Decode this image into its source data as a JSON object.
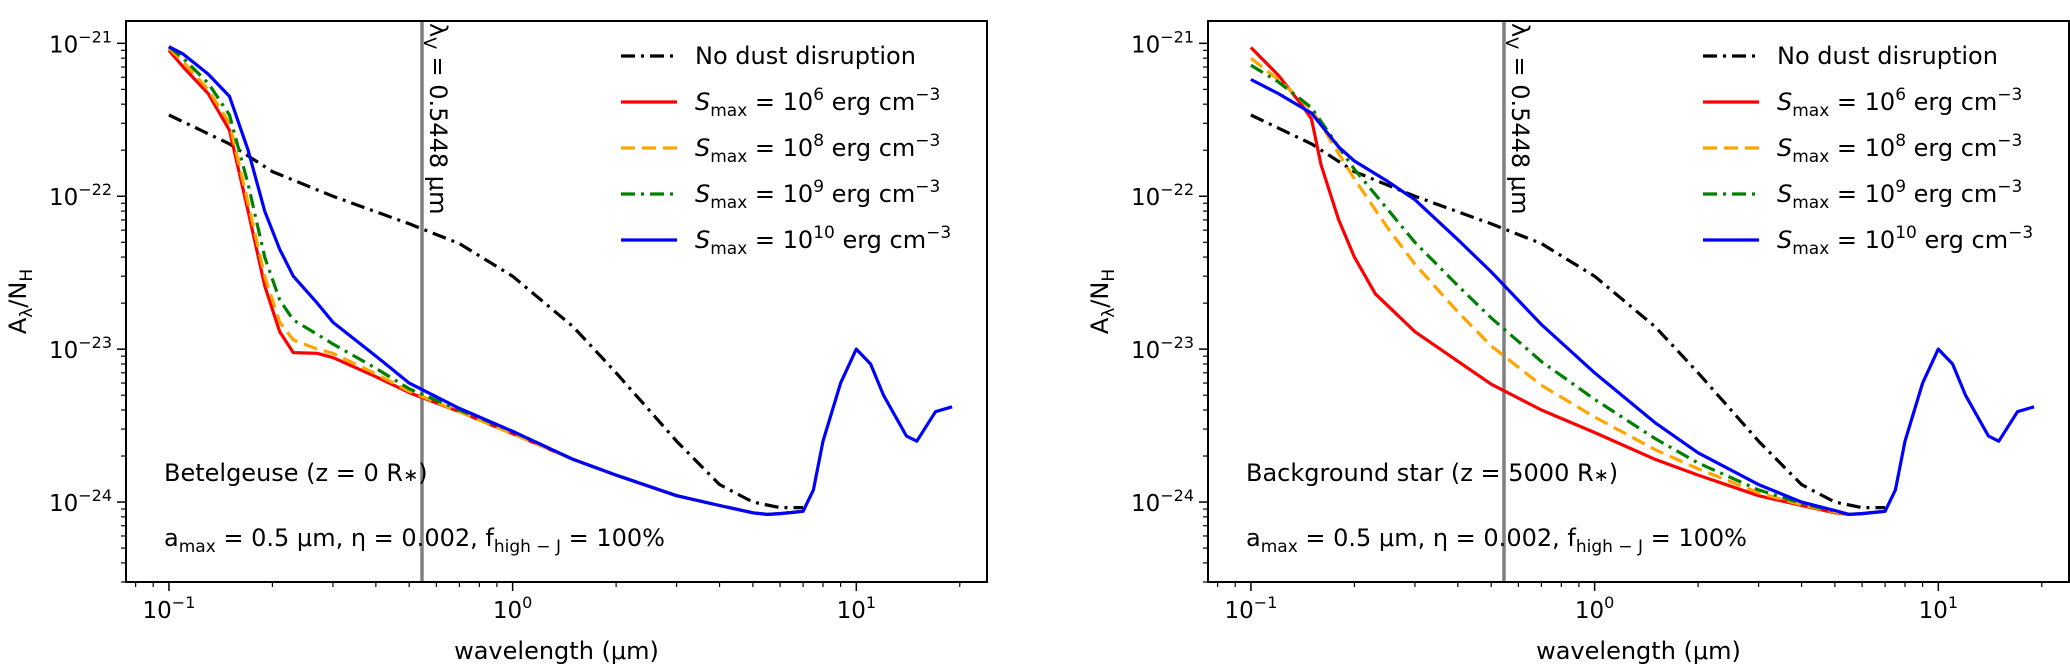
{
  "chart_data": [
    {
      "type": "line",
      "xscale": "log",
      "yscale": "log",
      "xlim": [
        0.075,
        24
      ],
      "ylim": [
        3e-25,
        1.4e-21
      ],
      "xlabel": "wavelength (μm)",
      "ylabel": "Aλ/NH",
      "xticks": [
        0.1,
        1,
        10
      ],
      "xtick_labels": [
        {
          "base": "10",
          "exp": "−1"
        },
        {
          "base": "10",
          "exp": "0"
        },
        {
          "base": "10",
          "exp": "1"
        }
      ],
      "yticks": [
        1e-24,
        1e-23,
        1e-22,
        1e-21
      ],
      "ytick_labels": [
        {
          "base": "10",
          "exp": "−24"
        },
        {
          "base": "10",
          "exp": "−23"
        },
        {
          "base": "10",
          "exp": "−22"
        },
        {
          "base": "10",
          "exp": "−21"
        }
      ],
      "vline": {
        "x": 0.5448,
        "label": "λV = 0.5448 μm",
        "color": "#808080"
      },
      "annotations": [
        "Betelgeuse (z = 0 R*)",
        "amax = 0.5 μm, η = 0.002, fhigh−J = 100%"
      ],
      "legend_location": "top-right",
      "series": [
        {
          "name": "No dust disruption",
          "color": "#000000",
          "style": "dashdot",
          "x": [
            0.1,
            0.15,
            0.2,
            0.3,
            0.5,
            0.7,
            1.0,
            1.5,
            2.0,
            3.0,
            4.0,
            5.0,
            6.0,
            7.0
          ],
          "y": [
            3.4e-22,
            2.2e-22,
            1.45e-22,
            1e-22,
            6.6e-23,
            4.9e-23,
            3e-23,
            1.4e-23,
            7e-24,
            2.5e-24,
            1.3e-24,
            1e-24,
            9.2e-25,
            9.2e-25
          ]
        },
        {
          "name": "Smax = 10^6 erg cm^-3",
          "color": "#ff0000",
          "style": "solid",
          "x": [
            0.1,
            0.11,
            0.13,
            0.15,
            0.17,
            0.19,
            0.21,
            0.23,
            0.27,
            0.3,
            0.4,
            0.5,
            0.7,
            1.0,
            1.5,
            2.0,
            3.0,
            4.0,
            5.0,
            5.5,
            6.0,
            7.0
          ],
          "y": [
            9e-22,
            7e-22,
            4.7e-22,
            2.7e-22,
            8e-23,
            2.6e-23,
            1.3e-23,
            9.5e-24,
            9.4e-24,
            8.8e-24,
            6.6e-24,
            5.2e-24,
            3.9e-24,
            2.8e-24,
            1.9e-24,
            1.5e-24,
            1.1e-24,
            9.5e-25,
            8.5e-25,
            8.3e-25,
            8.4e-25,
            8.7e-25
          ]
        },
        {
          "name": "Smax = 10^8 erg cm^-3",
          "color": "#ffa500",
          "style": "dashed",
          "x": [
            0.1,
            0.11,
            0.13,
            0.15,
            0.17,
            0.19,
            0.21,
            0.23,
            0.27,
            0.3,
            0.4,
            0.5,
            0.7,
            1.0,
            1.5,
            2.0,
            3.0,
            4.0,
            5.0,
            5.5,
            6.0,
            7.0
          ],
          "y": [
            9.3e-22,
            7.6e-22,
            5e-22,
            3e-22,
            9e-23,
            3e-23,
            1.5e-23,
            1.15e-23,
            1e-23,
            9.4e-24,
            6.9e-24,
            5.3e-24,
            3.9e-24,
            2.8e-24,
            1.9e-24,
            1.5e-24,
            1.1e-24,
            9.5e-25,
            8.5e-25,
            8.3e-25,
            8.4e-25,
            8.7e-25
          ]
        },
        {
          "name": "Smax = 10^9 erg cm^-3",
          "color": "#008000",
          "style": "dashdot",
          "x": [
            0.1,
            0.11,
            0.13,
            0.15,
            0.17,
            0.19,
            0.21,
            0.23,
            0.27,
            0.3,
            0.4,
            0.5,
            0.7,
            1.0,
            1.5,
            2.0,
            3.0,
            4.0,
            5.0,
            5.5,
            6.0,
            7.0
          ],
          "y": [
            9.5e-22,
            8e-22,
            5.5e-22,
            3.4e-22,
            1.2e-22,
            4e-23,
            2.1e-23,
            1.55e-23,
            1.25e-23,
            1.08e-23,
            7.5e-24,
            5.5e-24,
            4e-24,
            2.9e-24,
            1.9e-24,
            1.5e-24,
            1.1e-24,
            9.5e-25,
            8.5e-25,
            8.3e-25,
            8.4e-25,
            8.7e-25
          ]
        },
        {
          "name": "Smax = 10^10 erg cm^-3",
          "color": "#0000ff",
          "style": "solid",
          "x": [
            0.1,
            0.11,
            0.13,
            0.15,
            0.17,
            0.19,
            0.21,
            0.23,
            0.27,
            0.3,
            0.4,
            0.5,
            0.7,
            1.0,
            1.5,
            2.0,
            3.0,
            4.0,
            5.0,
            5.5,
            6.0,
            7.0,
            7.5,
            8.0,
            9.0,
            10.0,
            11.0,
            12.0,
            14.0,
            15.0,
            17.0,
            19.0
          ],
          "y": [
            9.5e-22,
            8.5e-22,
            6.3e-22,
            4.5e-22,
            2e-22,
            8e-23,
            4.5e-23,
            3e-23,
            2e-23,
            1.5e-23,
            9e-24,
            6e-24,
            4.1e-24,
            2.9e-24,
            1.9e-24,
            1.5e-24,
            1.1e-24,
            9.5e-25,
            8.5e-25,
            8.3e-25,
            8.4e-25,
            8.7e-25,
            1.2e-24,
            2.5e-24,
            6e-24,
            1e-23,
            8e-24,
            5e-24,
            2.7e-24,
            2.5e-24,
            3.9e-24,
            4.2e-24
          ]
        }
      ]
    },
    {
      "type": "line",
      "xscale": "log",
      "yscale": "log",
      "xlim": [
        0.075,
        24
      ],
      "ylim": [
        3e-25,
        1.4e-21
      ],
      "xlabel": "wavelength (μm)",
      "ylabel": "Aλ/NH",
      "xticks": [
        0.1,
        1,
        10
      ],
      "xtick_labels": [
        {
          "base": "10",
          "exp": "−1"
        },
        {
          "base": "10",
          "exp": "0"
        },
        {
          "base": "10",
          "exp": "1"
        }
      ],
      "yticks": [
        1e-24,
        1e-23,
        1e-22,
        1e-21
      ],
      "ytick_labels": [
        {
          "base": "10",
          "exp": "−24"
        },
        {
          "base": "10",
          "exp": "−23"
        },
        {
          "base": "10",
          "exp": "−22"
        },
        {
          "base": "10",
          "exp": "−21"
        }
      ],
      "vline": {
        "x": 0.5448,
        "label": "λV = 0.5448 μm",
        "color": "#808080"
      },
      "annotations": [
        "Background star (z = 5000 R*)",
        "amax = 0.5 μm, η = 0.002, fhigh−J = 100%"
      ],
      "legend_location": "top-right",
      "series": [
        {
          "name": "No dust disruption",
          "color": "#000000",
          "style": "dashdot",
          "x": [
            0.1,
            0.15,
            0.2,
            0.3,
            0.5,
            0.7,
            1.0,
            1.5,
            2.0,
            3.0,
            4.0,
            5.0,
            6.0,
            7.0
          ],
          "y": [
            3.4e-22,
            2.2e-22,
            1.45e-22,
            1e-22,
            6.6e-23,
            4.9e-23,
            3e-23,
            1.4e-23,
            7e-24,
            2.5e-24,
            1.3e-24,
            1e-24,
            9.2e-25,
            9.2e-25
          ]
        },
        {
          "name": "Smax = 10^6 erg cm^-3",
          "color": "#ff0000",
          "style": "solid",
          "x": [
            0.1,
            0.12,
            0.14,
            0.15,
            0.16,
            0.18,
            0.2,
            0.23,
            0.3,
            0.5,
            0.7,
            1.0,
            1.5,
            2.0,
            3.0,
            4.0,
            5.0,
            5.5,
            6.0,
            7.0
          ],
          "y": [
            9.4e-22,
            6.2e-22,
            4e-22,
            3.2e-22,
            1.6e-22,
            7e-23,
            4e-23,
            2.3e-23,
            1.3e-23,
            5.9e-24,
            4e-24,
            2.85e-24,
            1.9e-24,
            1.5e-24,
            1.1e-24,
            9.5e-25,
            8.5e-25,
            8.3e-25,
            8.4e-25,
            8.7e-25
          ]
        },
        {
          "name": "Smax = 10^8 erg cm^-3",
          "color": "#ffa500",
          "style": "dashed",
          "x": [
            0.1,
            0.12,
            0.15,
            0.18,
            0.2,
            0.25,
            0.3,
            0.4,
            0.5,
            0.7,
            1.0,
            1.5,
            2.0,
            3.0,
            4.0,
            5.0,
            5.5,
            6.0,
            7.0
          ],
          "y": [
            8e-22,
            5.8e-22,
            3.7e-22,
            1.9e-22,
            1.3e-22,
            6.2e-23,
            3.6e-23,
            1.75e-23,
            1.05e-23,
            5.8e-24,
            3.6e-24,
            2.2e-24,
            1.65e-24,
            1.15e-24,
            9.6e-25,
            8.6e-25,
            8.3e-25,
            8.4e-25,
            8.7e-25
          ]
        },
        {
          "name": "Smax = 10^9 erg cm^-3",
          "color": "#008000",
          "style": "dashdot",
          "x": [
            0.1,
            0.12,
            0.15,
            0.18,
            0.2,
            0.25,
            0.3,
            0.4,
            0.5,
            0.7,
            1.0,
            1.5,
            2.0,
            3.0,
            4.0,
            5.0,
            5.5,
            6.0,
            7.0
          ],
          "y": [
            7.2e-22,
            5.6e-22,
            3.8e-22,
            2.1e-22,
            1.5e-22,
            8.2e-23,
            5e-23,
            2.6e-23,
            1.6e-23,
            8.3e-24,
            4.7e-24,
            2.6e-24,
            1.8e-24,
            1.2e-24,
            9.8e-25,
            8.7e-25,
            8.3e-25,
            8.4e-25,
            8.7e-25
          ]
        },
        {
          "name": "Smax = 10^10 erg cm^-3",
          "color": "#0000ff",
          "style": "solid",
          "x": [
            0.1,
            0.12,
            0.15,
            0.18,
            0.2,
            0.25,
            0.3,
            0.4,
            0.5,
            0.7,
            1.0,
            1.5,
            2.0,
            3.0,
            4.0,
            5.0,
            5.5,
            6.0,
            7.0,
            7.5,
            8.0,
            9.0,
            10.0,
            11.0,
            12.0,
            14.0,
            15.0,
            17.0,
            19.0
          ],
          "y": [
            5.8e-22,
            4.7e-22,
            3.5e-22,
            2.1e-22,
            1.7e-22,
            1.25e-22,
            9.5e-23,
            5.2e-23,
            3.2e-23,
            1.45e-23,
            7e-24,
            3.3e-24,
            2.1e-24,
            1.3e-24,
            1e-24,
            8.8e-25,
            8.3e-25,
            8.4e-25,
            8.7e-25,
            1.2e-24,
            2.5e-24,
            6e-24,
            1e-23,
            8e-24,
            5e-24,
            2.7e-24,
            2.5e-24,
            3.9e-24,
            4.2e-24
          ]
        }
      ]
    }
  ]
}
